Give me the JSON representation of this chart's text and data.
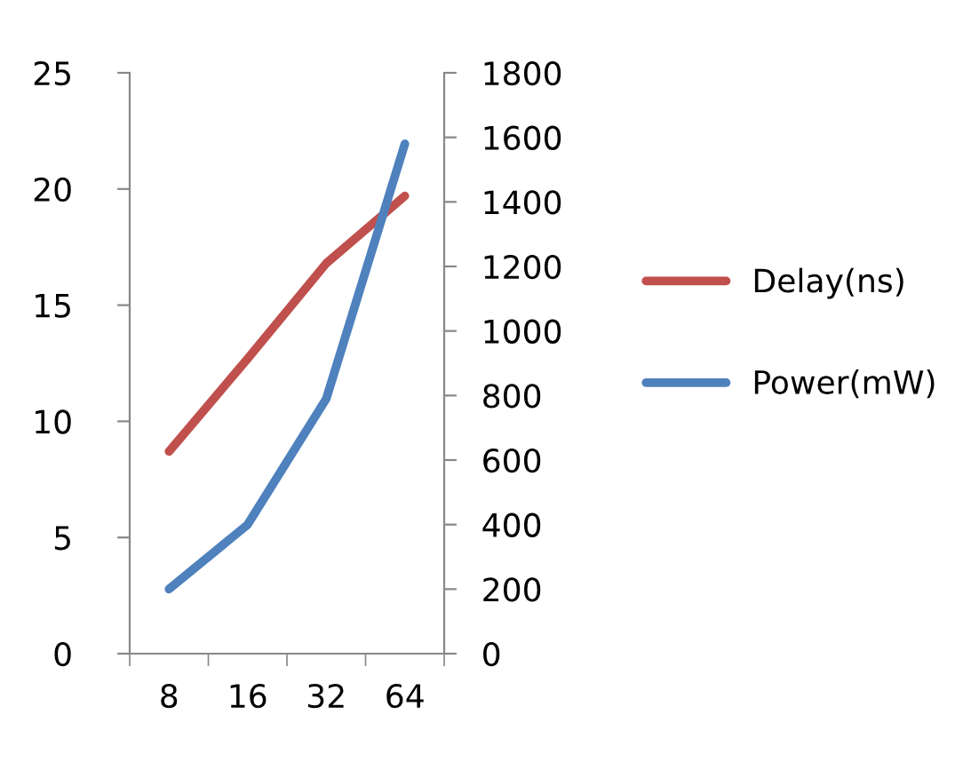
{
  "chart_data": {
    "type": "line",
    "categories": [
      "8",
      "16",
      "32",
      "64"
    ],
    "series": [
      {
        "name": "Delay(ns)",
        "color": "#c0504d",
        "values": [
          8.7,
          12.7,
          16.8,
          19.7
        ]
      },
      {
        "name": "Power(mW)",
        "color": "#4f81bd",
        "values": [
          200,
          400,
          790,
          1580
        ],
        "axis": "y2"
      }
    ],
    "ylim": [
      0,
      25
    ],
    "yticks": [
      0,
      5,
      10,
      15,
      20,
      25
    ],
    "y2lim": [
      0,
      1800
    ],
    "y2ticks": [
      0,
      200,
      400,
      600,
      800,
      1000,
      1200,
      1400,
      1600,
      1800
    ],
    "grid": false,
    "legend": "right",
    "marker": "none",
    "line_style": "solid"
  }
}
